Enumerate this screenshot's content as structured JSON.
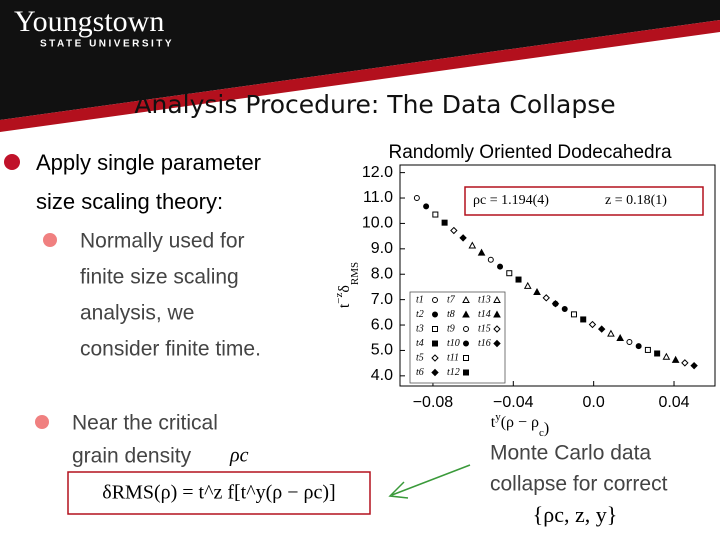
{
  "header": {
    "logo": "Youngstown",
    "logo_sub": "STATE UNIVERSITY",
    "title": "Analysis Procedure: The Data Collapse"
  },
  "bullets": [
    {
      "text": [
        "Apply single parameter",
        "size scaling theory:"
      ],
      "sub": [
        "Normally used for",
        "finite size scaling",
        "analysis, we",
        "consider finite time."
      ]
    },
    {
      "text": [
        "Near the critical",
        "grain density"
      ],
      "symbol": "ρc"
    }
  ],
  "equation": "δRMS(ρ) = t^z f[t^y(ρ − ρc)]",
  "caption": [
    "Monte Carlo data",
    "collapse for correct",
    "{ρc, z, y}"
  ],
  "chart_data": {
    "type": "scatter",
    "title": "Randomly Oriented Dodecahedra",
    "y_label": {
      "base": "t",
      "sup": "−z",
      "main": "δ",
      "sub": "RMS"
    },
    "x_label": {
      "base": "t",
      "sup": "y",
      "main": "(ρ − ρ",
      "sub": "c",
      "end": ")"
    },
    "annotations": [
      "ρc = 1.194(4)",
      "z = 0.18(1)"
    ],
    "xlim": [
      -0.0964,
      0.0604
    ],
    "ylim": [
      3.6,
      12.3
    ],
    "xticks": [
      {
        "value": -0.08,
        "label": "−0.08"
      },
      {
        "value": -0.04,
        "label": "−0.04"
      },
      {
        "value": 0,
        "label": "0.0"
      },
      0.04
    ],
    "yticks": [
      {
        "value": 4,
        "label": "4.0"
      },
      {
        "value": 5,
        "label": "5.0"
      },
      {
        "value": 6,
        "label": "6.0"
      },
      {
        "value": 7,
        "label": "7.0"
      },
      {
        "value": 8,
        "label": "8.0"
      },
      {
        "value": 9,
        "label": "9.0"
      },
      {
        "value": 10,
        "label": "10.0"
      },
      {
        "value": 11,
        "label": "11.0"
      },
      {
        "value": 12,
        "label": "12.0"
      }
    ],
    "series": [
      {
        "name": "t1",
        "color": "#000000",
        "marker": "circle-open",
        "x": [
          -0.088,
          -0.019
        ],
        "values": [
          11.0,
          6.84
        ]
      },
      {
        "name": "t2",
        "color": "#000000",
        "marker": "circle",
        "x": [
          -0.0834,
          -0.0144
        ],
        "values": [
          10.67,
          6.63
        ]
      },
      {
        "name": "t3",
        "color": "#000000",
        "marker": "square-open",
        "x": [
          -0.0788,
          -0.0098
        ],
        "values": [
          10.35,
          6.42
        ]
      },
      {
        "name": "t4",
        "color": "#000000",
        "marker": "square",
        "x": [
          -0.0742,
          -0.0052
        ],
        "values": [
          10.03,
          6.22
        ]
      },
      {
        "name": "t5",
        "color": "#000000",
        "marker": "diamond-open",
        "x": [
          -0.0696,
          -0.0006
        ],
        "values": [
          9.72,
          6.02
        ]
      },
      {
        "name": "t6",
        "color": "#000000",
        "marker": "diamond",
        "x": [
          -0.065,
          0.004
        ],
        "values": [
          9.43,
          5.84
        ]
      },
      {
        "name": "t7",
        "color": "#000000",
        "marker": "triangle-open",
        "x": [
          -0.0604,
          0.0086
        ],
        "values": [
          9.13,
          5.66
        ]
      },
      {
        "name": "t8",
        "color": "#000000",
        "marker": "triangle",
        "x": [
          -0.0558,
          0.0132
        ],
        "values": [
          8.85,
          5.49
        ]
      },
      {
        "name": "t9",
        "color": "#000000",
        "marker": "circle-open",
        "x": [
          -0.0512,
          0.0178
        ],
        "values": [
          8.57,
          5.33
        ]
      },
      {
        "name": "t10",
        "color": "#000000",
        "marker": "circle",
        "x": [
          -0.0466,
          0.0224
        ],
        "values": [
          8.3,
          5.17
        ]
      },
      {
        "name": "t11",
        "color": "#000000",
        "marker": "square-open",
        "x": [
          -0.042,
          0.027
        ],
        "values": [
          8.04,
          5.02
        ]
      },
      {
        "name": "t12",
        "color": "#000000",
        "marker": "square",
        "x": [
          -0.0374,
          0.0316
        ],
        "values": [
          7.79,
          4.88
        ]
      },
      {
        "name": "t13",
        "color": "#000000",
        "marker": "triangle-open",
        "x": [
          -0.0328,
          0.0362
        ],
        "values": [
          7.54,
          4.75
        ]
      },
      {
        "name": "t14",
        "color": "#000000",
        "marker": "triangle",
        "x": [
          -0.0282,
          0.0408
        ],
        "values": [
          7.3,
          4.63
        ]
      },
      {
        "name": "t15",
        "color": "#000000",
        "marker": "diamond-open",
        "x": [
          -0.0236,
          0.0454
        ],
        "values": [
          7.07,
          4.51
        ]
      },
      {
        "name": "t16",
        "color": "#000000",
        "marker": "diamond",
        "x": [
          -0.019,
          0.05
        ],
        "values": [
          6.84,
          4.4
        ]
      }
    ]
  }
}
